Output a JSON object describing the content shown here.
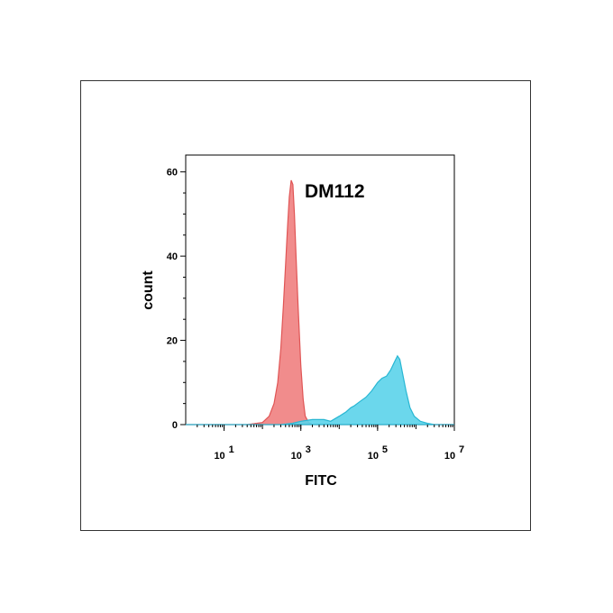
{
  "chart_data": {
    "type": "area",
    "title": "DM112",
    "xlabel": "FITC",
    "ylabel": "count",
    "x_scale": "log",
    "xlim": [
      1,
      10000000
    ],
    "ylim": [
      0,
      64
    ],
    "x_ticks": [
      {
        "base": "10",
        "exp": "1",
        "value": 10
      },
      {
        "base": "10",
        "exp": "3",
        "value": 1000
      },
      {
        "base": "10",
        "exp": "5",
        "value": 100000
      },
      {
        "base": "10",
        "exp": "7",
        "value": 10000000
      }
    ],
    "y_ticks": [
      {
        "label": "0",
        "value": 0
      },
      {
        "label": "20",
        "value": 20
      },
      {
        "label": "40",
        "value": 40
      },
      {
        "label": "60",
        "value": 60
      }
    ],
    "series": [
      {
        "color": "#f08080",
        "stroke": "#e05555",
        "points": [
          [
            1,
            0
          ],
          [
            40,
            0
          ],
          [
            100,
            0.5
          ],
          [
            150,
            2
          ],
          [
            200,
            5
          ],
          [
            250,
            10
          ],
          [
            300,
            18
          ],
          [
            350,
            28
          ],
          [
            400,
            38
          ],
          [
            450,
            47
          ],
          [
            500,
            54
          ],
          [
            560,
            58
          ],
          [
            620,
            57
          ],
          [
            680,
            50
          ],
          [
            750,
            40
          ],
          [
            850,
            28
          ],
          [
            1000,
            14
          ],
          [
            1150,
            6
          ],
          [
            1300,
            2
          ],
          [
            1600,
            0.5
          ],
          [
            2000,
            0
          ],
          [
            10000000,
            0
          ]
        ]
      },
      {
        "color": "#5bd3ea",
        "stroke": "#29b7d3",
        "points": [
          [
            1,
            0
          ],
          [
            300,
            0
          ],
          [
            600,
            0.3
          ],
          [
            1000,
            0.8
          ],
          [
            2000,
            1.2
          ],
          [
            4000,
            1.2
          ],
          [
            6000,
            0.8
          ],
          [
            10000,
            2
          ],
          [
            15000,
            3
          ],
          [
            20000,
            4
          ],
          [
            25000,
            4.5
          ],
          [
            35000,
            5.5
          ],
          [
            50000,
            6.5
          ],
          [
            70000,
            8
          ],
          [
            100000,
            10
          ],
          [
            130000,
            11
          ],
          [
            170000,
            11.5
          ],
          [
            220000,
            13
          ],
          [
            280000,
            15
          ],
          [
            330000,
            16.3
          ],
          [
            380000,
            15.5
          ],
          [
            450000,
            12
          ],
          [
            550000,
            8
          ],
          [
            700000,
            4
          ],
          [
            900000,
            2
          ],
          [
            1300000,
            0.8
          ],
          [
            2000000,
            0.3
          ],
          [
            3000000,
            0
          ],
          [
            10000000,
            0
          ]
        ]
      }
    ]
  }
}
